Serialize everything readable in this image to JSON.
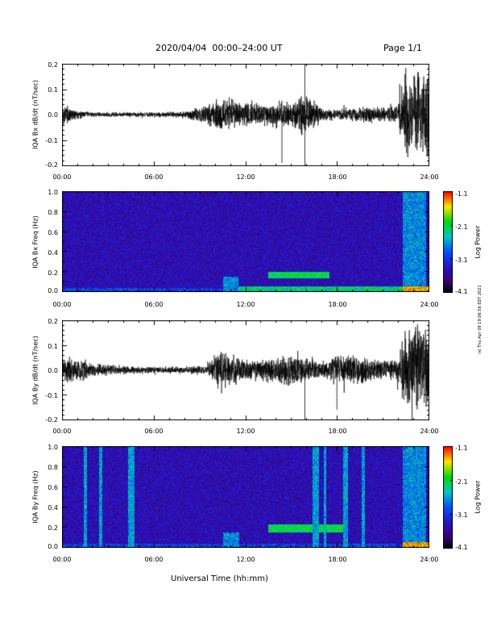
{
  "header": {
    "title": "2020/04/04  00:00–24:00 UT",
    "page": "Page 1/1"
  },
  "xaxis": {
    "label": "Universal Time (hh:mm)",
    "ticks": [
      "00:00",
      "06:00",
      "12:00",
      "18:00",
      "24:00"
    ]
  },
  "colorbar": {
    "label": "Log Power",
    "ticks": [
      "-1.1",
      "-2.1",
      "-3.1",
      "-4.1"
    ]
  },
  "stamp": "rxl Thu Apr 09 19:06:56 EDT 2021",
  "panels": {
    "bx": {
      "ylabel": "IQA Bx dB/dt (nT/sec)",
      "yticks": [
        "0.2",
        "0.1",
        "0.0",
        "-0.1",
        "-0.2"
      ]
    },
    "bx_spec": {
      "ylabel": "IQA Bx Freq (Hz)",
      "yticks": [
        "1.0",
        "0.8",
        "0.6",
        "0.4",
        "0.2",
        "0.0"
      ]
    },
    "by": {
      "ylabel": "IQA By dB/dt (nT/sec)",
      "yticks": [
        "0.2",
        "0.1",
        "0.0",
        "-0.1",
        "-0.2"
      ]
    },
    "by_spec": {
      "ylabel": "IQA By Freq (Hz)",
      "yticks": [
        "1.0",
        "0.8",
        "0.6",
        "0.4",
        "0.2",
        "0.0"
      ]
    }
  },
  "chart_data": [
    {
      "type": "line",
      "series_label": "IQA Bx dB/dt (nT/sec)",
      "xlim_hours": [
        0,
        24
      ],
      "ylim": [
        -0.2,
        0.2
      ],
      "activity_envelope": {
        "time_hours": [
          0,
          0.5,
          1,
          2,
          4,
          6,
          8,
          9.5,
          10.5,
          11,
          12,
          13,
          14,
          15,
          16,
          17,
          18,
          19,
          20,
          21,
          22,
          22.5,
          23,
          24
        ],
        "amplitude": [
          0.05,
          0.04,
          0.02,
          0.01,
          0.01,
          0.01,
          0.015,
          0.04,
          0.09,
          0.07,
          0.05,
          0.05,
          0.06,
          0.06,
          0.09,
          0.03,
          0.02,
          0.035,
          0.04,
          0.03,
          0.04,
          0.2,
          0.2,
          0.2
        ]
      },
      "spikes": [
        {
          "time": 15.9,
          "value": 0.2
        },
        {
          "time": 15.9,
          "value": -0.2
        },
        {
          "time": 14.4,
          "value": -0.19
        }
      ]
    },
    {
      "type": "heatmap",
      "series_label": "IQA Bx Freq (Hz)",
      "xlim_hours": [
        0,
        24
      ],
      "ylim": [
        0,
        1.0
      ],
      "zlim_log_power": [
        -4.1,
        -1.1
      ],
      "features": [
        {
          "kind": "low-freq band",
          "time": [
            10.5,
            24
          ],
          "freq": [
            0,
            0.05
          ]
        },
        {
          "kind": "broadband patch",
          "time": [
            10.5,
            11.5
          ],
          "freq": [
            0,
            0.15
          ]
        },
        {
          "kind": "pc1 band",
          "time": [
            13.5,
            17.5
          ],
          "freq": [
            0.13,
            0.2
          ]
        },
        {
          "kind": "broadband patch",
          "time": [
            22.3,
            23.8
          ],
          "freq": [
            0,
            1.0
          ]
        }
      ]
    },
    {
      "type": "line",
      "series_label": "IQA By dB/dt (nT/sec)",
      "xlim_hours": [
        0,
        24
      ],
      "ylim": [
        -0.2,
        0.2
      ],
      "activity_envelope": {
        "time_hours": [
          0,
          0.5,
          1,
          2,
          4,
          6,
          8,
          9.5,
          10,
          10.5,
          11,
          12,
          13,
          14,
          15,
          16,
          17,
          18,
          19,
          20,
          21,
          22,
          22.5,
          23,
          24
        ],
        "amplitude": [
          0.05,
          0.06,
          0.05,
          0.03,
          0.02,
          0.015,
          0.015,
          0.02,
          0.07,
          0.1,
          0.06,
          0.05,
          0.05,
          0.06,
          0.07,
          0.06,
          0.04,
          0.06,
          0.07,
          0.06,
          0.04,
          0.05,
          0.2,
          0.2,
          0.2
        ]
      },
      "spikes": [
        {
          "time": 15.9,
          "value": -0.2
        },
        {
          "time": 18.0,
          "value": -0.16
        }
      ]
    },
    {
      "type": "heatmap",
      "series_label": "IQA By Freq (Hz)",
      "xlim_hours": [
        0,
        24
      ],
      "ylim": [
        0,
        1.0
      ],
      "zlim_log_power": [
        -4.1,
        -1.1
      ],
      "features": [
        {
          "kind": "vertical broadband stripe",
          "time": [
            1.4,
            1.6
          ],
          "freq": [
            0,
            1.0
          ]
        },
        {
          "kind": "vertical broadband stripe",
          "time": [
            2.4,
            2.6
          ],
          "freq": [
            0,
            1.0
          ]
        },
        {
          "kind": "vertical broadband stripe",
          "time": [
            4.3,
            4.7
          ],
          "freq": [
            0,
            1.0
          ]
        },
        {
          "kind": "broadband patch",
          "time": [
            10.5,
            11.6
          ],
          "freq": [
            0,
            0.15
          ]
        },
        {
          "kind": "pc1 band",
          "time": [
            13.5,
            18.5
          ],
          "freq": [
            0.15,
            0.23
          ]
        },
        {
          "kind": "vertical broadband stripe",
          "time": [
            16.4,
            16.8
          ],
          "freq": [
            0,
            1.0
          ]
        },
        {
          "kind": "vertical broadband stripe",
          "time": [
            17.1,
            17.3
          ],
          "freq": [
            0,
            1.0
          ]
        },
        {
          "kind": "vertical broadband stripe",
          "time": [
            18.4,
            18.7
          ],
          "freq": [
            0,
            1.0
          ]
        },
        {
          "kind": "vertical broadband stripe",
          "time": [
            19.6,
            19.8
          ],
          "freq": [
            0,
            1.0
          ]
        },
        {
          "kind": "broadband patch",
          "time": [
            22.3,
            23.8
          ],
          "freq": [
            0,
            1.0
          ]
        }
      ]
    }
  ]
}
